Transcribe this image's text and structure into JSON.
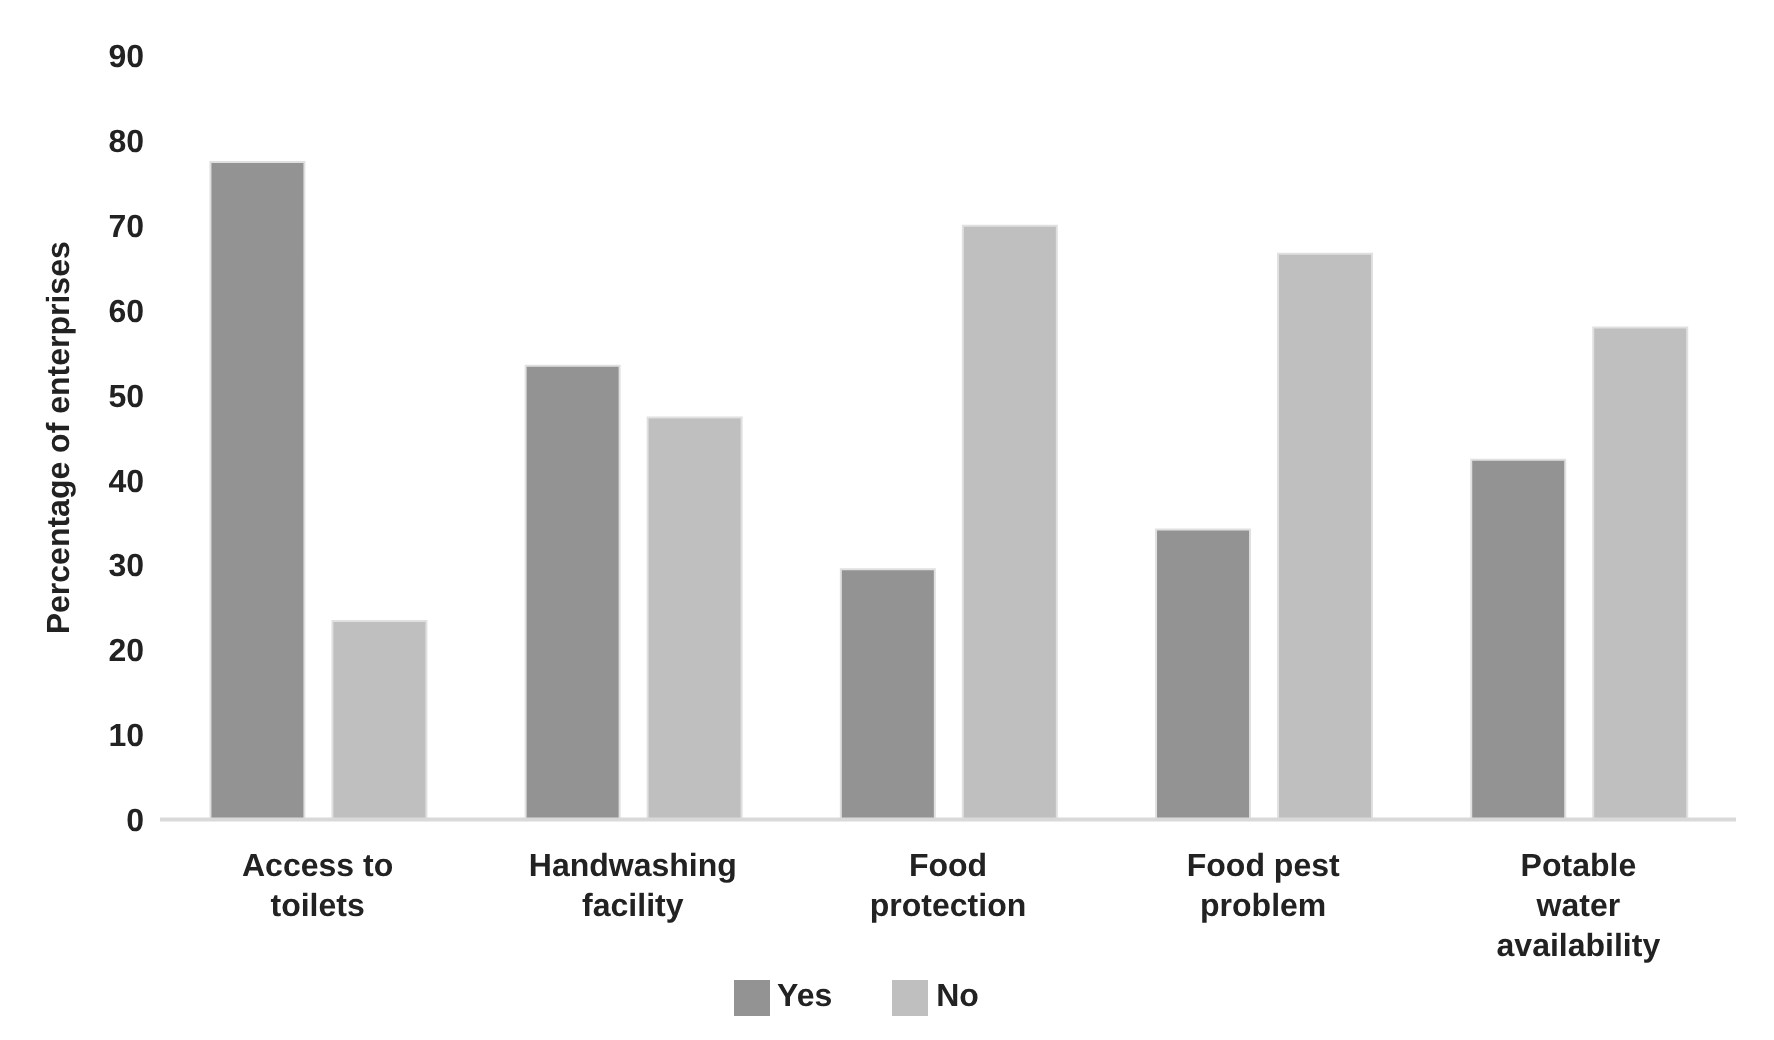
{
  "chart_data": {
    "type": "bar",
    "ylabel": "Percentage of enterprises",
    "categories": [
      "Access to toilets",
      "Handwashing facility",
      "Food protection",
      "Food pest problem",
      "Potable water availability"
    ],
    "series": [
      {
        "name": "Yes",
        "color": "#939393",
        "values": [
          77.5,
          53.5,
          29.5,
          34.2,
          42.4
        ]
      },
      {
        "name": "No",
        "color": "#bfbfbf",
        "values": [
          23.4,
          47.4,
          70,
          66.7,
          58
        ]
      }
    ],
    "ylim": [
      0,
      90
    ],
    "yticks": [
      0,
      10,
      20,
      30,
      40,
      50,
      60,
      70,
      80,
      90
    ],
    "grid": false,
    "legend": "bottom"
  }
}
